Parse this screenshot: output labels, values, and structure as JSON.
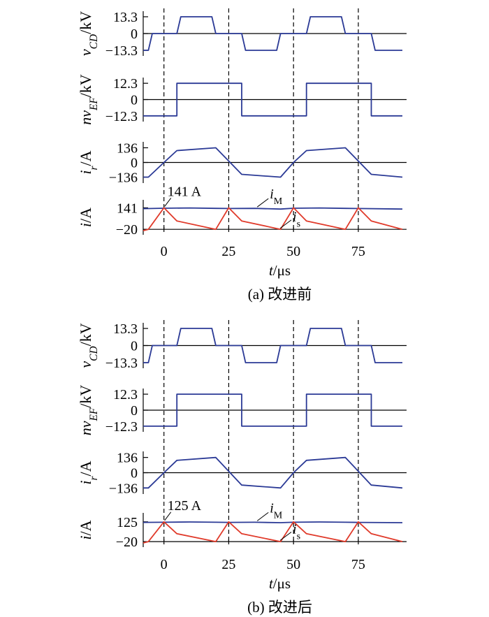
{
  "colors": {
    "blue": "#2b3a96",
    "red": "#e03a2a",
    "axis": "#000000"
  },
  "chart_data": [
    {
      "type": "line",
      "caption": "(a)  改进前",
      "x_axis": {
        "label_var": "t",
        "label_unit": "/μs",
        "ticks": [
          "0",
          "25",
          "50",
          "75"
        ],
        "tick_values": [
          0,
          25,
          50,
          75
        ],
        "xlim": [
          -8,
          92
        ]
      },
      "guides_x": [
        0,
        25,
        50,
        75
      ],
      "panels": [
        {
          "id": "vcd",
          "ylabel": {
            "var": "v",
            "sub": "CD",
            "unit": "/kV"
          },
          "yticks": [
            "13.3",
            "0",
            "−13.3"
          ],
          "ytick_values": [
            13.3,
            0,
            -13.3
          ],
          "ylim": [
            -15.5,
            15.5
          ],
          "series": [
            {
              "color_key": "blue",
              "points": [
                [
                  -8,
                  -13.3
                ],
                [
                  -6,
                  -13.3
                ],
                [
                  -4.5,
                  0
                ],
                [
                  5,
                  0
                ],
                [
                  6.5,
                  13.3
                ],
                [
                  18.5,
                  13.3
                ],
                [
                  20,
                  0
                ],
                [
                  30,
                  0
                ],
                [
                  31.5,
                  -13.3
                ],
                [
                  43.5,
                  -13.3
                ],
                [
                  45,
                  0
                ],
                [
                  55,
                  0
                ],
                [
                  56.5,
                  13.3
                ],
                [
                  68.5,
                  13.3
                ],
                [
                  70,
                  0
                ],
                [
                  80,
                  0
                ],
                [
                  81.5,
                  -13.3
                ],
                [
                  92,
                  -13.3
                ]
              ]
            }
          ]
        },
        {
          "id": "nvef",
          "ylabel": {
            "var": "nv",
            "sub": "EF",
            "unit": "/kV"
          },
          "yticks": [
            "12.3",
            "0",
            "−12.3"
          ],
          "ytick_values": [
            12.3,
            0,
            -12.3
          ],
          "ylim": [
            -14.5,
            14.5
          ],
          "series": [
            {
              "color_key": "blue",
              "points": [
                [
                  -8,
                  -12.3
                ],
                [
                  5,
                  -12.3
                ],
                [
                  5,
                  12.3
                ],
                [
                  30,
                  12.3
                ],
                [
                  30,
                  -12.3
                ],
                [
                  55,
                  -12.3
                ],
                [
                  55,
                  12.3
                ],
                [
                  80,
                  12.3
                ],
                [
                  80,
                  -12.3
                ],
                [
                  92,
                  -12.3
                ]
              ]
            }
          ]
        },
        {
          "id": "ir",
          "ylabel": {
            "var": "i",
            "sub": "r",
            "unit": "/A"
          },
          "yticks": [
            "136",
            "0",
            "−136"
          ],
          "ytick_values": [
            136,
            0,
            -136
          ],
          "ylim": [
            -165,
            165
          ],
          "series": [
            {
              "color_key": "blue",
              "points": [
                [
                  -8,
                  -136
                ],
                [
                  -6,
                  -136
                ],
                [
                  0,
                  0
                ],
                [
                  5,
                  110
                ],
                [
                  20,
                  136
                ],
                [
                  30,
                  -110
                ],
                [
                  45,
                  -136
                ],
                [
                  50,
                  0
                ],
                [
                  55,
                  110
                ],
                [
                  70,
                  136
                ],
                [
                  80,
                  -110
                ],
                [
                  92,
                  -136
                ]
              ]
            }
          ]
        },
        {
          "id": "i",
          "ylabel": {
            "var": "i",
            "sub": "",
            "unit": "/A"
          },
          "yticks": [
            "141",
            "−20"
          ],
          "ytick_values": [
            141,
            -20
          ],
          "ylim": [
            -40,
            180
          ],
          "series": [
            {
              "name_var": "i",
              "name_sub": "M",
              "color_key": "blue",
              "points": [
                [
                  -8,
                  135
                ],
                [
                  0,
                  138
                ],
                [
                  10,
                  140
                ],
                [
                  20,
                  137
                ],
                [
                  25,
                  136
                ],
                [
                  35,
                  137
                ],
                [
                  45,
                  132
                ],
                [
                  50,
                  138
                ],
                [
                  60,
                  140
                ],
                [
                  70,
                  137
                ],
                [
                  75,
                  136
                ],
                [
                  92,
                  132
                ]
              ]
            },
            {
              "name_var": "i",
              "name_sub": "s",
              "color_key": "red",
              "points": [
                [
                  -8,
                  -30
                ],
                [
                  -6,
                  -20
                ],
                [
                  0,
                  141
                ],
                [
                  5,
                  43
                ],
                [
                  20,
                  -20
                ],
                [
                  25,
                  141
                ],
                [
                  30,
                  43
                ],
                [
                  45,
                  -20
                ],
                [
                  50,
                  141
                ],
                [
                  55,
                  43
                ],
                [
                  70,
                  -20
                ],
                [
                  75,
                  141
                ],
                [
                  80,
                  43
                ],
                [
                  92,
                  -20
                ]
              ]
            }
          ],
          "annotation": {
            "text": "141 A",
            "x": 0,
            "y": 141
          }
        }
      ]
    },
    {
      "type": "line",
      "caption": "(b)  改进后",
      "x_axis": {
        "label_var": "t",
        "label_unit": "/μs",
        "ticks": [
          "0",
          "25",
          "50",
          "75"
        ],
        "tick_values": [
          0,
          25,
          50,
          75
        ],
        "xlim": [
          -8,
          92
        ]
      },
      "guides_x": [
        0,
        25,
        50,
        75
      ],
      "panels": [
        {
          "id": "vcd",
          "ylabel": {
            "var": "v",
            "sub": "CD",
            "unit": "/kV"
          },
          "yticks": [
            "13.3",
            "0",
            "−13.3"
          ],
          "ytick_values": [
            13.3,
            0,
            -13.3
          ],
          "ylim": [
            -15.5,
            15.5
          ],
          "series": [
            {
              "color_key": "blue",
              "points": [
                [
                  -8,
                  -13.3
                ],
                [
                  -6,
                  -13.3
                ],
                [
                  -4.5,
                  0
                ],
                [
                  5,
                  0
                ],
                [
                  6.5,
                  13.3
                ],
                [
                  18.5,
                  13.3
                ],
                [
                  20,
                  0
                ],
                [
                  30,
                  0
                ],
                [
                  31.5,
                  -13.3
                ],
                [
                  43.5,
                  -13.3
                ],
                [
                  45,
                  0
                ],
                [
                  55,
                  0
                ],
                [
                  56.5,
                  13.3
                ],
                [
                  68.5,
                  13.3
                ],
                [
                  70,
                  0
                ],
                [
                  80,
                  0
                ],
                [
                  81.5,
                  -13.3
                ],
                [
                  92,
                  -13.3
                ]
              ]
            }
          ]
        },
        {
          "id": "nvef",
          "ylabel": {
            "var": "nv",
            "sub": "EF",
            "unit": "/kV"
          },
          "yticks": [
            "12.3",
            "0",
            "−12.3"
          ],
          "ytick_values": [
            12.3,
            0,
            -12.3
          ],
          "ylim": [
            -14.5,
            14.5
          ],
          "series": [
            {
              "color_key": "blue",
              "points": [
                [
                  -8,
                  -12.3
                ],
                [
                  5,
                  -12.3
                ],
                [
                  5,
                  12.3
                ],
                [
                  30,
                  12.3
                ],
                [
                  30,
                  -12.3
                ],
                [
                  55,
                  -12.3
                ],
                [
                  55,
                  12.3
                ],
                [
                  80,
                  12.3
                ],
                [
                  80,
                  -12.3
                ],
                [
                  92,
                  -12.3
                ]
              ]
            }
          ]
        },
        {
          "id": "ir",
          "ylabel": {
            "var": "i",
            "sub": "r",
            "unit": "/A"
          },
          "yticks": [
            "136",
            "0",
            "−136"
          ],
          "ytick_values": [
            136,
            0,
            -136
          ],
          "ylim": [
            -165,
            165
          ],
          "series": [
            {
              "color_key": "blue",
              "points": [
                [
                  -8,
                  -136
                ],
                [
                  -6,
                  -136
                ],
                [
                  0,
                  0
                ],
                [
                  5,
                  110
                ],
                [
                  20,
                  136
                ],
                [
                  30,
                  -110
                ],
                [
                  45,
                  -136
                ],
                [
                  50,
                  0
                ],
                [
                  55,
                  110
                ],
                [
                  70,
                  136
                ],
                [
                  80,
                  -110
                ],
                [
                  92,
                  -136
                ]
              ]
            }
          ]
        },
        {
          "id": "i",
          "ylabel": {
            "var": "i",
            "sub": "",
            "unit": "/A"
          },
          "yticks": [
            "125",
            "−20"
          ],
          "ytick_values": [
            125,
            -20
          ],
          "ylim": [
            -40,
            170
          ],
          "series": [
            {
              "name_var": "i",
              "name_sub": "M",
              "color_key": "blue",
              "points": [
                [
                  -8,
                  121
                ],
                [
                  0,
                  122
                ],
                [
                  10,
                  124
                ],
                [
                  20,
                  122
                ],
                [
                  25,
                  121
                ],
                [
                  35,
                  122
                ],
                [
                  45,
                  119
                ],
                [
                  50,
                  122
                ],
                [
                  60,
                  124
                ],
                [
                  70,
                  122
                ],
                [
                  75,
                  121
                ],
                [
                  92,
                  119
                ]
              ]
            },
            {
              "name_var": "i",
              "name_sub": "s",
              "color_key": "red",
              "points": [
                [
                  -8,
                  -30
                ],
                [
                  -6,
                  -20
                ],
                [
                  0,
                  125
                ],
                [
                  5,
                  38
                ],
                [
                  20,
                  -20
                ],
                [
                  25,
                  125
                ],
                [
                  30,
                  38
                ],
                [
                  45,
                  -20
                ],
                [
                  50,
                  125
                ],
                [
                  55,
                  38
                ],
                [
                  70,
                  -20
                ],
                [
                  75,
                  125
                ],
                [
                  80,
                  38
                ],
                [
                  92,
                  -20
                ]
              ]
            }
          ],
          "annotation": {
            "text": "125 A",
            "x": 0,
            "y": 125
          }
        }
      ]
    }
  ]
}
